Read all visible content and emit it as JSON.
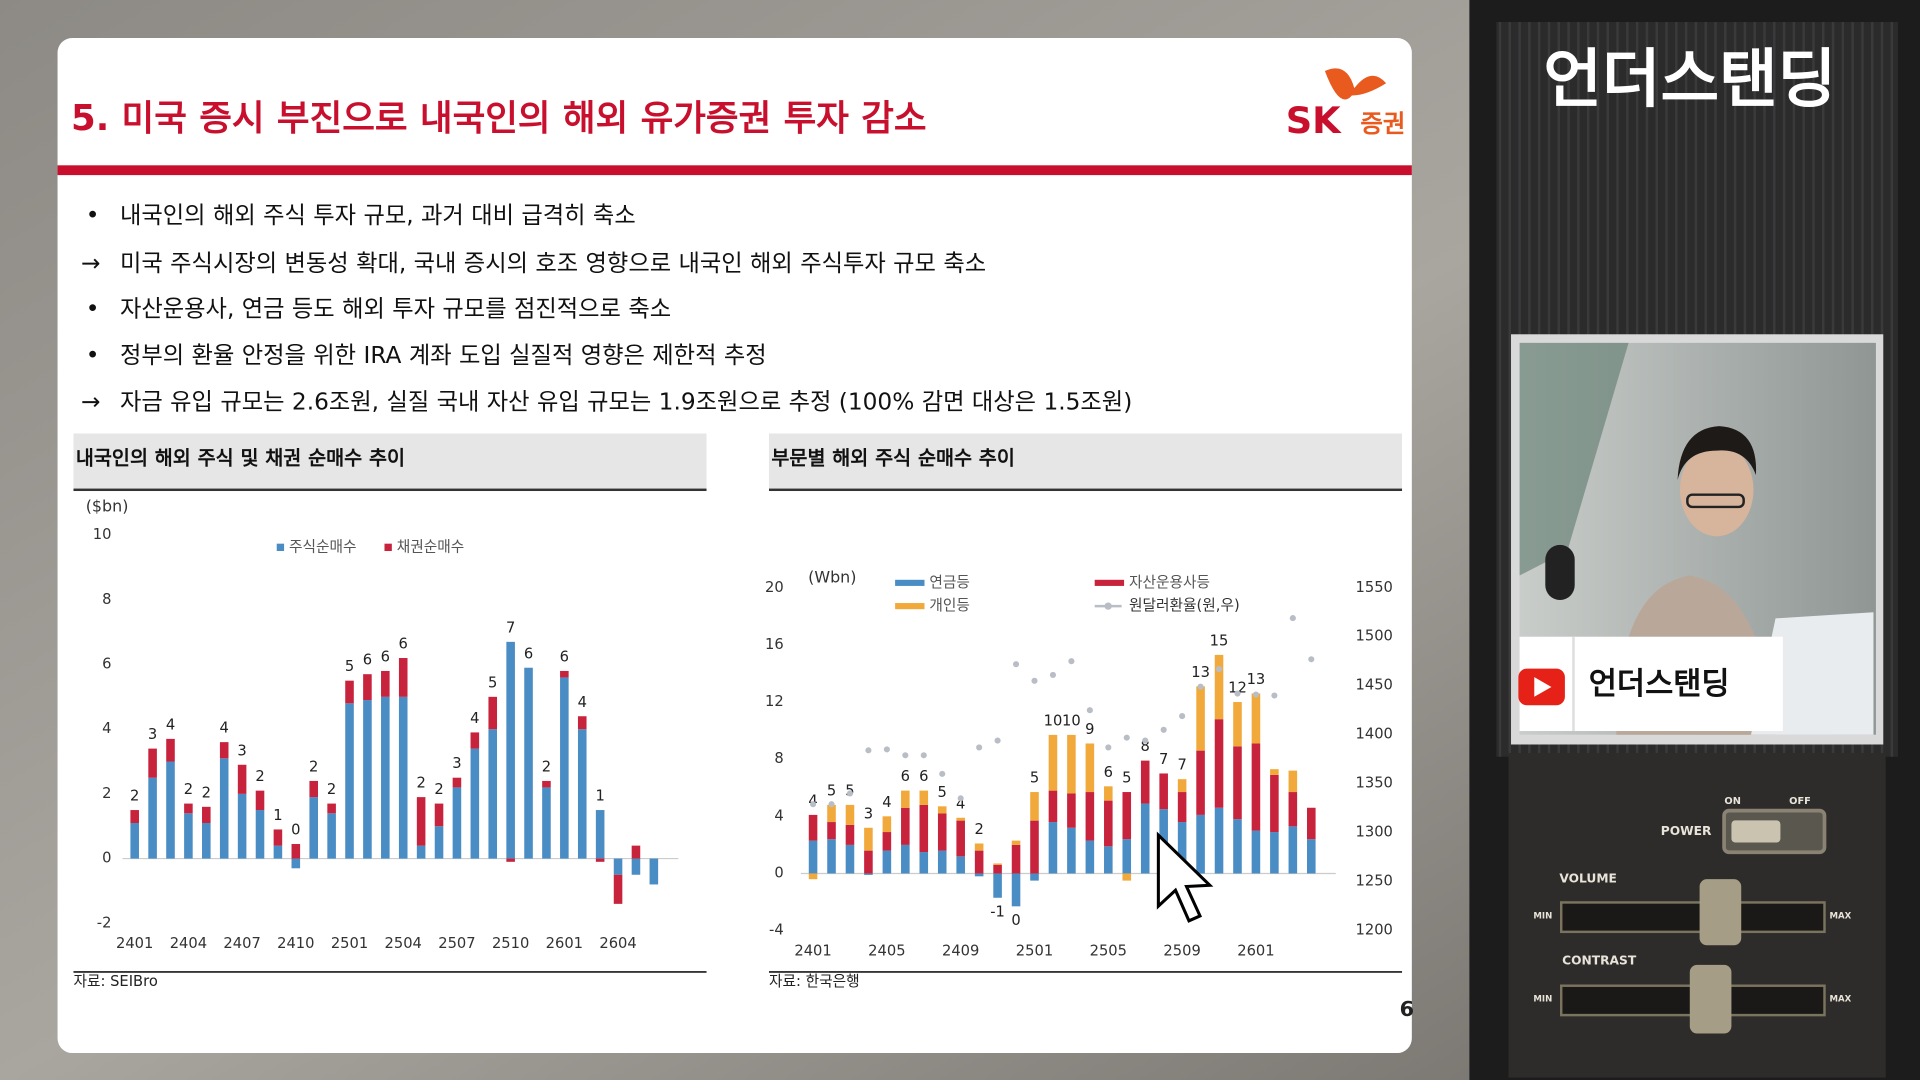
{
  "slide": {
    "title": "5. 미국 증시 부진으로 내국인의 해외 유가증권 투자 감소",
    "logo": {
      "mark": "SK",
      "text": "증권"
    },
    "bullets": [
      {
        "marker": "•",
        "text": "내국인의 해외 주식 투자 규모, 과거 대비 급격히 축소"
      },
      {
        "marker": "→",
        "text": "미국 주식시장의 변동성 확대, 국내 증시의 호조 영향으로 내국인 해외 주식투자 규모 축소"
      },
      {
        "marker": "•",
        "text": "자산운용사, 연금 등도 해외 투자 규모를 점진적으로 축소"
      },
      {
        "marker": "•",
        "text": "정부의 환율 안정을 위한 IRA 계좌 도입 실질적 영향은 제한적 추정"
      },
      {
        "marker": "→",
        "text": "자금 유입 규모는 2.6조원, 실질 국내 자산 유입 규모는 1.9조원으로 추정 (100% 감면 대상은 1.5조원)"
      }
    ],
    "page_number": "6"
  },
  "chart_data": [
    {
      "type": "bar",
      "stacked": true,
      "title": "내국인의 해외 주식 및 채권 순매수 추이",
      "y_label": "($bn)",
      "source": "자료: SEIBro",
      "categories": [
        "2401",
        null,
        null,
        "2404",
        null,
        null,
        "2407",
        null,
        null,
        "2410",
        null,
        null,
        "2501",
        null,
        null,
        "2504",
        null,
        null,
        "2507",
        null,
        null,
        "2510",
        null,
        null,
        "2601",
        null,
        null,
        "2604",
        null,
        null
      ],
      "series": [
        {
          "name": "주식순매수",
          "color": "#4a8cc4",
          "values": [
            1.1,
            2.5,
            3.0,
            1.4,
            1.1,
            3.1,
            2.0,
            1.5,
            0.4,
            -0.3,
            1.9,
            1.4,
            4.8,
            4.9,
            5.0,
            5.0,
            0.4,
            1.0,
            2.2,
            3.4,
            4.0,
            6.7,
            5.9,
            2.2,
            5.6,
            4.0,
            1.5,
            -0.5,
            -0.5,
            -0.8
          ]
        },
        {
          "name": "채권순매수",
          "color": "#c8233d",
          "values": [
            0.4,
            0.9,
            0.7,
            0.3,
            0.5,
            0.5,
            0.9,
            0.6,
            0.5,
            0.45,
            0.5,
            0.3,
            0.7,
            0.8,
            0.8,
            1.2,
            1.5,
            0.7,
            0.3,
            0.5,
            1.0,
            -0.1,
            0,
            0.2,
            0.2,
            0.4,
            -0.1,
            -0.9,
            0.4,
            0
          ]
        }
      ],
      "bar_labels": [
        2,
        3,
        4,
        2,
        2,
        4,
        3,
        2,
        1,
        0,
        2,
        2,
        5,
        6,
        6,
        6,
        2,
        2,
        3,
        4,
        5,
        7,
        6,
        2,
        6,
        4,
        1,
        null,
        null,
        null
      ],
      "ylim": [
        -2,
        10
      ],
      "yticks": [
        -2,
        0,
        2,
        4,
        6,
        8,
        10
      ]
    },
    {
      "type": "bar",
      "stacked": true,
      "title": "부문별 해외 주식 순매수 추이",
      "y_label": "(Wbn)",
      "source": "자료: 한국은행",
      "categories": [
        "2401",
        null,
        null,
        null,
        "2405",
        null,
        null,
        null,
        "2409",
        null,
        null,
        null,
        "2501",
        null,
        null,
        null,
        "2505",
        null,
        null,
        null,
        "2509",
        null,
        null,
        null,
        "2601",
        null,
        null,
        null
      ],
      "series": [
        {
          "name": "연금등",
          "color": "#4a8cc4",
          "values": [
            2.3,
            2.4,
            2.0,
            -0.1,
            1.6,
            2.0,
            1.5,
            1.6,
            1.2,
            -0.2,
            -1.7,
            -2.3,
            -0.5,
            3.6,
            3.2,
            2.3,
            1.9,
            2.4,
            4.9,
            4.5,
            3.6,
            4.1,
            4.6,
            3.8,
            3.0,
            2.9,
            3.3,
            2.4
          ]
        },
        {
          "name": "자산운용사등",
          "color": "#c8233d",
          "values": [
            1.8,
            1.2,
            1.4,
            1.6,
            1.3,
            2.6,
            3.3,
            2.6,
            2.5,
            1.6,
            0.6,
            2.0,
            3.7,
            2.2,
            2.4,
            3.4,
            3.2,
            3.3,
            3.0,
            2.5,
            2.1,
            4.5,
            6.2,
            5.1,
            6.1,
            4.0,
            2.4,
            2.2
          ]
        },
        {
          "name": "개인등",
          "color": "#f2a93b",
          "values": [
            -0.4,
            1.2,
            1.4,
            1.6,
            1.1,
            1.2,
            1.0,
            0.5,
            0.2,
            0.5,
            0.1,
            0.3,
            2.0,
            3.9,
            4.1,
            3.4,
            1.0,
            -0.5,
            0,
            0,
            0.9,
            4.5,
            4.5,
            3.1,
            3.5,
            0.4,
            1.5,
            0
          ]
        },
        {
          "name": "원달러환율(원,우)",
          "type": "line",
          "axis": "y2",
          "color": "#b9bec6",
          "values": [
            1329,
            1329,
            1340,
            1384,
            1385,
            1379,
            1379,
            1360,
            1335,
            1387,
            1394,
            1472,
            1455,
            1461,
            1475,
            1425,
            1387,
            1397,
            1394,
            1405,
            1419,
            1449,
            1467,
            1442,
            1441,
            1440,
            1519,
            1477
          ]
        }
      ],
      "bar_labels": [
        4,
        5,
        5,
        3,
        4,
        6,
        6,
        5,
        4,
        2,
        -1,
        0,
        5,
        10,
        10,
        9,
        6,
        5,
        8,
        7,
        7,
        13,
        15,
        12,
        13,
        null,
        null,
        null
      ],
      "ylim": [
        -4,
        20
      ],
      "yticks": [
        -4,
        0,
        4,
        8,
        12,
        16,
        20
      ],
      "y2lim": [
        1200,
        1550
      ],
      "y2ticks": [
        1200,
        1250,
        1300,
        1350,
        1400,
        1450,
        1500,
        1550
      ]
    }
  ],
  "overlay": {
    "show_title": "언더스탠딩",
    "caption": "언더스탠딩",
    "panel": {
      "power": "POWER",
      "on": "ON",
      "off": "OFF",
      "volume": "VOLUME",
      "contrast": "CONTRAST",
      "min": "MIN",
      "max": "MAX"
    }
  }
}
